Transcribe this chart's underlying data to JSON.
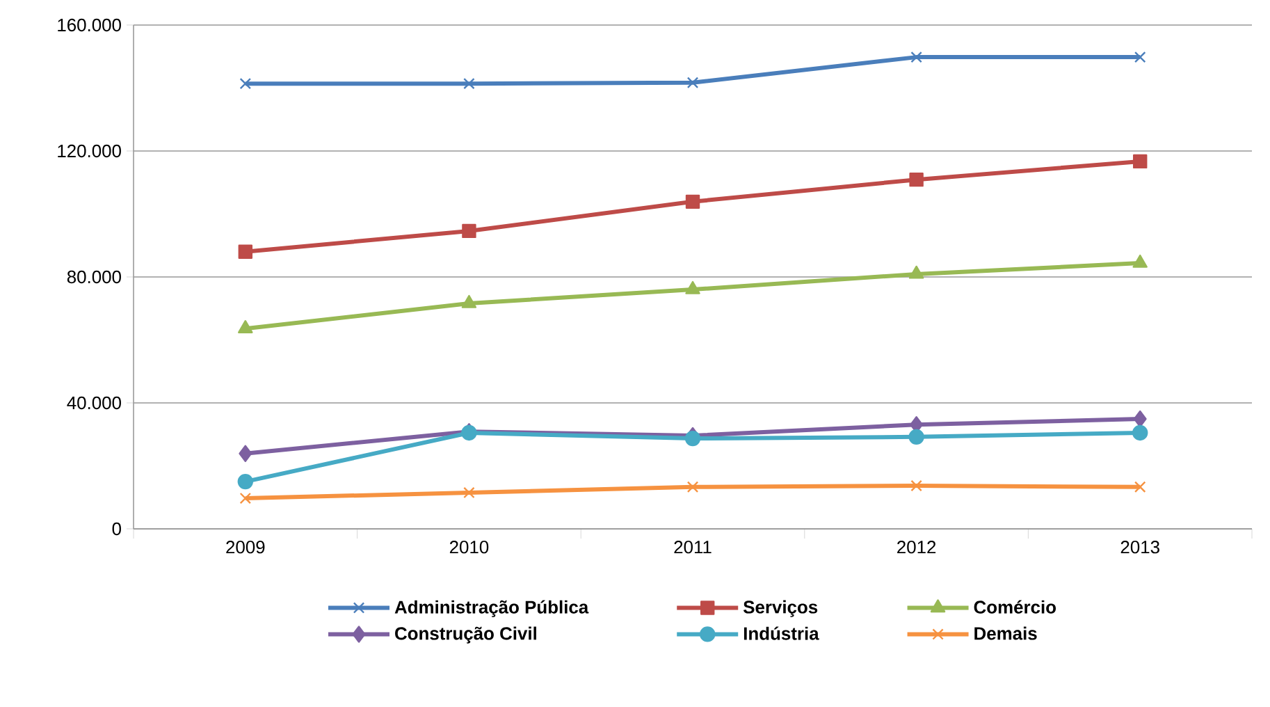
{
  "chart_data": {
    "type": "line",
    "categories": [
      "2009",
      "2010",
      "2011",
      "2012",
      "2013"
    ],
    "ylim": [
      0,
      160000
    ],
    "yticks": [
      {
        "value": 0,
        "label": "0"
      },
      {
        "value": 40000,
        "label": "40.000"
      },
      {
        "value": 80000,
        "label": "80.000"
      },
      {
        "value": 120000,
        "label": "120.000"
      },
      {
        "value": 160000,
        "label": "160.000"
      }
    ],
    "grid": "y",
    "legend": "bottom",
    "series": [
      {
        "name": "Administração Pública",
        "color": "#4a7ebb",
        "marker": "cross",
        "values": [
          141400,
          141400,
          141700,
          149800,
          149800
        ]
      },
      {
        "name": "Serviços",
        "color": "#be4b48",
        "marker": "square",
        "values": [
          88000,
          94600,
          103900,
          110900,
          116700
        ]
      },
      {
        "name": "Comércio",
        "color": "#98b954",
        "marker": "triangle",
        "values": [
          63600,
          71600,
          76000,
          80900,
          84400
        ]
      },
      {
        "name": "Construção Civil",
        "color": "#7d60a0",
        "marker": "diamond",
        "values": [
          23900,
          30900,
          29600,
          33100,
          34900
        ]
      },
      {
        "name": "Indústria",
        "color": "#46aac5",
        "marker": "circle",
        "values": [
          15000,
          30500,
          28700,
          29200,
          30500
        ]
      },
      {
        "name": "Demais",
        "color": "#f69240",
        "marker": "cross",
        "values": [
          9700,
          11500,
          13300,
          13700,
          13300
        ]
      }
    ]
  }
}
